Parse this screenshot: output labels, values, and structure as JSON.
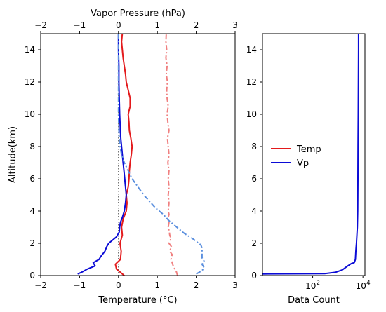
{
  "chart_data": [
    {
      "type": "line",
      "xlabel": "Temperature (°C)",
      "x2label": "Vapor Pressure (hPa)",
      "ylabel": "Altitude(km)",
      "xlim": [
        -2,
        3
      ],
      "x2lim": [
        -2,
        3
      ],
      "ylim": [
        0,
        15
      ],
      "xticks": [
        "−2",
        "−1",
        "0",
        "1",
        "2",
        "3"
      ],
      "x2ticks": [
        "−2",
        "−1",
        "0",
        "1",
        "2",
        "3"
      ],
      "yticks": [
        "0",
        "2",
        "4",
        "6",
        "8",
        "10",
        "12",
        "14"
      ],
      "reference_line": {
        "x": 0,
        "style": "dotted",
        "color": "#555555"
      },
      "series": [
        {
          "name": "Temp",
          "axis": "bottom",
          "color": "#e31a1c",
          "style": "solid",
          "points": [
            [
              0.15,
              0.0
            ],
            [
              0.1,
              0.1
            ],
            [
              0.05,
              0.2
            ],
            [
              -0.05,
              0.4
            ],
            [
              -0.08,
              0.7
            ],
            [
              0.05,
              1.0
            ],
            [
              0.07,
              1.5
            ],
            [
              0.04,
              2.0
            ],
            [
              0.1,
              2.5
            ],
            [
              0.08,
              3.0
            ],
            [
              0.12,
              3.5
            ],
            [
              0.2,
              4.0
            ],
            [
              0.22,
              4.5
            ],
            [
              0.2,
              5.0
            ],
            [
              0.25,
              5.5
            ],
            [
              0.27,
              6.0
            ],
            [
              0.28,
              6.5
            ],
            [
              0.3,
              7.0
            ],
            [
              0.33,
              7.5
            ],
            [
              0.35,
              8.0
            ],
            [
              0.32,
              8.5
            ],
            [
              0.28,
              9.0
            ],
            [
              0.27,
              9.5
            ],
            [
              0.25,
              10.0
            ],
            [
              0.3,
              10.5
            ],
            [
              0.3,
              11.0
            ],
            [
              0.25,
              11.5
            ],
            [
              0.2,
              12.0
            ],
            [
              0.18,
              12.5
            ],
            [
              0.15,
              13.0
            ],
            [
              0.12,
              13.5
            ],
            [
              0.1,
              14.0
            ],
            [
              0.08,
              14.5
            ],
            [
              0.1,
              15.0
            ]
          ]
        },
        {
          "name": "Temp",
          "axis": "bottom",
          "color": "#f08080",
          "style": "dashdot",
          "points": [
            [
              1.52,
              0.0
            ],
            [
              1.48,
              0.3
            ],
            [
              1.42,
              0.5
            ],
            [
              1.38,
              0.8
            ],
            [
              1.35,
              1.0
            ],
            [
              1.38,
              1.3
            ],
            [
              1.32,
              1.5
            ],
            [
              1.36,
              1.8
            ],
            [
              1.3,
              2.0
            ],
            [
              1.35,
              2.3
            ],
            [
              1.32,
              2.5
            ],
            [
              1.3,
              2.8
            ],
            [
              1.28,
              3.0
            ],
            [
              1.3,
              3.3
            ],
            [
              1.27,
              3.5
            ],
            [
              1.3,
              3.8
            ],
            [
              1.28,
              4.0
            ],
            [
              1.3,
              4.5
            ],
            [
              1.28,
              5.0
            ],
            [
              1.3,
              5.5
            ],
            [
              1.28,
              6.0
            ],
            [
              1.3,
              6.5
            ],
            [
              1.27,
              7.0
            ],
            [
              1.3,
              7.5
            ],
            [
              1.28,
              8.0
            ],
            [
              1.26,
              8.5
            ],
            [
              1.3,
              9.0
            ],
            [
              1.27,
              9.5
            ],
            [
              1.25,
              10.0
            ],
            [
              1.28,
              10.5
            ],
            [
              1.25,
              11.0
            ],
            [
              1.24,
              11.5
            ],
            [
              1.26,
              12.0
            ],
            [
              1.23,
              12.5
            ],
            [
              1.25,
              13.0
            ],
            [
              1.22,
              13.5
            ],
            [
              1.24,
              14.0
            ],
            [
              1.22,
              14.5
            ],
            [
              1.23,
              15.0
            ]
          ]
        },
        {
          "name": "Vp",
          "axis": "bottom",
          "color": "#0b0bd6",
          "style": "solid",
          "points": [
            [
              -1.05,
              0.1
            ],
            [
              -0.95,
              0.2
            ],
            [
              -0.8,
              0.4
            ],
            [
              -0.6,
              0.6
            ],
            [
              -0.65,
              0.8
            ],
            [
              -0.5,
              1.0
            ],
            [
              -0.45,
              1.2
            ],
            [
              -0.35,
              1.5
            ],
            [
              -0.3,
              1.8
            ],
            [
              -0.25,
              2.0
            ],
            [
              -0.15,
              2.2
            ],
            [
              -0.05,
              2.4
            ],
            [
              0.02,
              2.7
            ],
            [
              0.03,
              3.0
            ],
            [
              0.05,
              3.3
            ],
            [
              0.1,
              3.6
            ],
            [
              0.15,
              4.0
            ],
            [
              0.18,
              4.5
            ],
            [
              0.2,
              5.0
            ],
            [
              0.18,
              5.5
            ],
            [
              0.16,
              6.0
            ],
            [
              0.14,
              6.5
            ],
            [
              0.12,
              7.0
            ],
            [
              0.1,
              7.5
            ],
            [
              0.08,
              8.0
            ],
            [
              0.06,
              8.5
            ],
            [
              0.05,
              9.0
            ],
            [
              0.04,
              9.5
            ],
            [
              0.03,
              10.0
            ],
            [
              0.02,
              11.0
            ],
            [
              0.01,
              12.0
            ],
            [
              0.01,
              13.0
            ],
            [
              0.0,
              14.0
            ],
            [
              0.0,
              15.0
            ]
          ]
        },
        {
          "name": "Vp",
          "axis": "top",
          "color": "#5b8fde",
          "style": "dashdot",
          "points": [
            [
              2.0,
              0.1
            ],
            [
              2.15,
              0.3
            ],
            [
              2.2,
              0.5
            ],
            [
              2.15,
              0.7
            ],
            [
              2.2,
              0.9
            ],
            [
              2.15,
              1.1
            ],
            [
              2.15,
              1.4
            ],
            [
              2.15,
              1.7
            ],
            [
              2.12,
              1.9
            ],
            [
              1.9,
              2.3
            ],
            [
              1.7,
              2.6
            ],
            [
              1.5,
              3.0
            ],
            [
              1.3,
              3.4
            ],
            [
              1.15,
              3.8
            ],
            [
              0.95,
              4.2
            ],
            [
              0.8,
              4.6
            ],
            [
              0.65,
              5.0
            ],
            [
              0.5,
              5.5
            ],
            [
              0.35,
              6.0
            ],
            [
              0.25,
              6.5
            ],
            [
              0.15,
              7.0
            ],
            [
              0.08,
              7.5
            ],
            [
              0.04,
              8.0
            ],
            [
              0.02,
              8.5
            ],
            [
              0.01,
              9.0
            ],
            [
              0.0,
              10.0
            ],
            [
              0.0,
              11.0
            ],
            [
              0.0,
              12.0
            ],
            [
              0.0,
              13.0
            ],
            [
              0.0,
              14.0
            ],
            [
              0.0,
              15.0
            ]
          ]
        }
      ]
    },
    {
      "type": "line",
      "xlabel": "Data Count",
      "xscale": "log",
      "xlim": [
        1,
        12000
      ],
      "ylim": [
        0,
        15
      ],
      "xticks": [
        {
          "value": 100,
          "label": "10",
          "exp": "2"
        },
        {
          "value": 10000,
          "label": "10",
          "exp": "4"
        }
      ],
      "yticks": [
        "0",
        "2",
        "4",
        "6",
        "8",
        "10",
        "12",
        "14"
      ],
      "legend": {
        "placement": "left-center",
        "entries": [
          {
            "label": "Temp",
            "color": "#e31a1c"
          },
          {
            "label": "Vp",
            "color": "#0b0bd6"
          }
        ]
      },
      "series": [
        {
          "name": "Vp",
          "color": "#0b0bd6",
          "style": "solid",
          "points": [
            [
              1,
              0.1
            ],
            [
              300,
              0.12
            ],
            [
              800,
              0.2
            ],
            [
              1500,
              0.35
            ],
            [
              2500,
              0.6
            ],
            [
              3500,
              0.75
            ],
            [
              4500,
              0.8
            ],
            [
              5000,
              1.0
            ],
            [
              5200,
              1.5
            ],
            [
              5500,
              2.0
            ],
            [
              6000,
              3.0
            ],
            [
              6200,
              4.0
            ],
            [
              6300,
              6.0
            ],
            [
              6400,
              8.0
            ],
            [
              6500,
              10.0
            ],
            [
              6600,
              12.0
            ],
            [
              6700,
              14.0
            ],
            [
              6700,
              15.0
            ]
          ]
        }
      ]
    }
  ]
}
